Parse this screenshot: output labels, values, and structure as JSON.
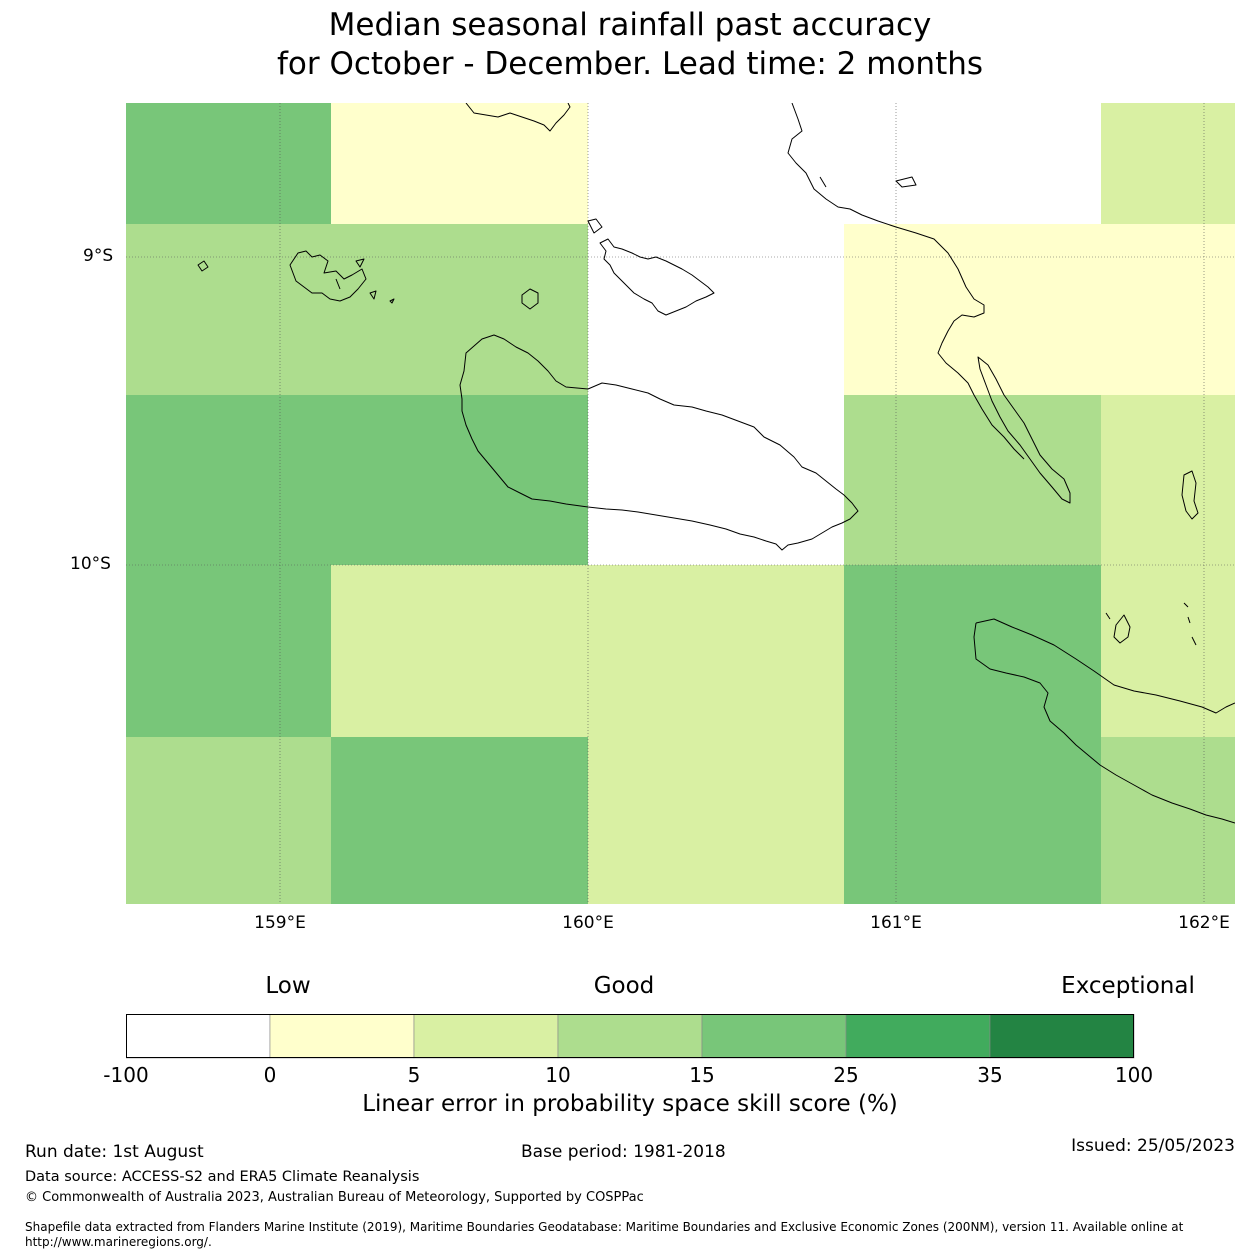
{
  "title": {
    "line1": "Median seasonal rainfall past accuracy",
    "line2": "for October - December. Lead time: 2 months"
  },
  "map": {
    "lat_ticks": [
      "9°S",
      "10°S"
    ],
    "lon_ticks": [
      "159°E",
      "160°E",
      "161°E",
      "162°E"
    ]
  },
  "colorbar": {
    "labels": {
      "low": "Low",
      "good": "Good",
      "exceptional": "Exceptional"
    },
    "ticks": [
      "-100",
      "0",
      "5",
      "10",
      "15",
      "25",
      "35",
      "100"
    ],
    "colors": [
      "#ffffff",
      "#ffffcc",
      "#d9f0a3",
      "#addd8e",
      "#78c679",
      "#41ab5d",
      "#238443"
    ],
    "title": "Linear error in probability space skill score (%)"
  },
  "footer": {
    "run_date": "Run date: 1st August",
    "base_period": "Base period: 1981-2018",
    "issued": "Issued: 25/05/2023",
    "data_source": "Data source: ACCESS-S2 and ERA5 Climate Reanalysis",
    "copyright": "© Commonwealth of Australia 2023, Australian Bureau of Meteorology, Supported by COSPPac",
    "shapefile_line1": "Shapefile data extracted from Flanders Marine Institute (2019), Maritime Boundaries Geodatabase: Maritime Boundaries and Exclusive Economic Zones (200NM), version 11. Available online at",
    "shapefile_line2": "http://www.marineregions.org/."
  }
}
